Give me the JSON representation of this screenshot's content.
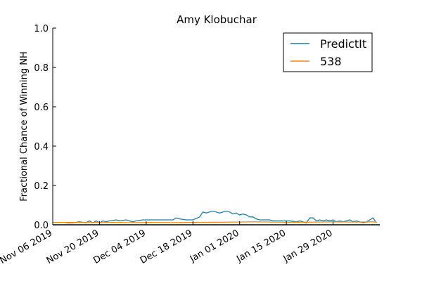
{
  "chart_data": {
    "type": "line",
    "title": "Amy Klobuchar",
    "xlabel": "",
    "ylabel": "Fractional Chance of Winning NH",
    "ylim": [
      0,
      1
    ],
    "yticks": [
      "0.0",
      "0.2",
      "0.4",
      "0.6",
      "0.8",
      "1.0"
    ],
    "xlim": [
      "2019-11-06",
      "2020-02-12"
    ],
    "xticks": [
      {
        "date": "2019-11-06",
        "label": "Nov 06 2019"
      },
      {
        "date": "2019-11-20",
        "label": "Nov 20 2019"
      },
      {
        "date": "2019-12-04",
        "label": "Dec 04 2019"
      },
      {
        "date": "2019-12-18",
        "label": "Dec 18 2019"
      },
      {
        "date": "2020-01-01",
        "label": "Jan 01 2020"
      },
      {
        "date": "2020-01-15",
        "label": "Jan 15 2020"
      },
      {
        "date": "2020-01-29",
        "label": "Jan 29 2020"
      }
    ],
    "grid": false,
    "legend_position": "top-right",
    "series": [
      {
        "name": "PredictIt",
        "color": "#1f7f9f",
        "points": [
          [
            "2019-11-10",
            0.01
          ],
          [
            "2019-11-12",
            0.01
          ],
          [
            "2019-11-14",
            0.015
          ],
          [
            "2019-11-16",
            0.01
          ],
          [
            "2019-11-17",
            0.02
          ],
          [
            "2019-11-18",
            0.01
          ],
          [
            "2019-11-19",
            0.02
          ],
          [
            "2019-11-20",
            0.01
          ],
          [
            "2019-11-21",
            0.02
          ],
          [
            "2019-11-22",
            0.015
          ],
          [
            "2019-11-23",
            0.02
          ],
          [
            "2019-11-25",
            0.025
          ],
          [
            "2019-11-26",
            0.02
          ],
          [
            "2019-11-28",
            0.025
          ],
          [
            "2019-11-30",
            0.015
          ],
          [
            "2019-12-01",
            0.02
          ],
          [
            "2019-12-03",
            0.025
          ],
          [
            "2019-12-05",
            0.025
          ],
          [
            "2019-12-08",
            0.025
          ],
          [
            "2019-12-10",
            0.025
          ],
          [
            "2019-12-12",
            0.025
          ],
          [
            "2019-12-13",
            0.035
          ],
          [
            "2019-12-14",
            0.03
          ],
          [
            "2019-12-16",
            0.025
          ],
          [
            "2019-12-18",
            0.025
          ],
          [
            "2019-12-20",
            0.04
          ],
          [
            "2019-12-21",
            0.065
          ],
          [
            "2019-12-22",
            0.06
          ],
          [
            "2019-12-23",
            0.065
          ],
          [
            "2019-12-24",
            0.07
          ],
          [
            "2019-12-26",
            0.06
          ],
          [
            "2019-12-27",
            0.065
          ],
          [
            "2019-12-28",
            0.07
          ],
          [
            "2019-12-29",
            0.065
          ],
          [
            "2019-12-30",
            0.055
          ],
          [
            "2019-12-31",
            0.06
          ],
          [
            "2020-01-01",
            0.05
          ],
          [
            "2020-01-02",
            0.055
          ],
          [
            "2020-01-03",
            0.05
          ],
          [
            "2020-01-04",
            0.04
          ],
          [
            "2020-01-05",
            0.04
          ],
          [
            "2020-01-06",
            0.03
          ],
          [
            "2020-01-07",
            0.025
          ],
          [
            "2020-01-08",
            0.025
          ],
          [
            "2020-01-10",
            0.025
          ],
          [
            "2020-01-11",
            0.02
          ],
          [
            "2020-01-13",
            0.02
          ],
          [
            "2020-01-15",
            0.02
          ],
          [
            "2020-01-16",
            0.02
          ],
          [
            "2020-01-18",
            0.015
          ],
          [
            "2020-01-19",
            0.02
          ],
          [
            "2020-01-20",
            0.015
          ],
          [
            "2020-01-21",
            0.01
          ],
          [
            "2020-01-22",
            0.035
          ],
          [
            "2020-01-23",
            0.035
          ],
          [
            "2020-01-24",
            0.02
          ],
          [
            "2020-01-25",
            0.025
          ],
          [
            "2020-01-26",
            0.02
          ],
          [
            "2020-01-27",
            0.025
          ],
          [
            "2020-01-28",
            0.02
          ],
          [
            "2020-01-29",
            0.025
          ],
          [
            "2020-01-30",
            0.015
          ],
          [
            "2020-01-31",
            0.02
          ],
          [
            "2020-02-01",
            0.015
          ],
          [
            "2020-02-02",
            0.02
          ],
          [
            "2020-02-03",
            0.025
          ],
          [
            "2020-02-04",
            0.015
          ],
          [
            "2020-02-05",
            0.02
          ],
          [
            "2020-02-06",
            0.015
          ],
          [
            "2020-02-07",
            0.01
          ],
          [
            "2020-02-08",
            0.015
          ],
          [
            "2020-02-09",
            0.025
          ],
          [
            "2020-02-10",
            0.035
          ],
          [
            "2020-02-11",
            0.01
          ]
        ]
      },
      {
        "name": "538",
        "color": "#f0880f",
        "points": [
          [
            "2019-11-06",
            0.012
          ],
          [
            "2019-11-12",
            0.012
          ],
          [
            "2019-11-18",
            0.011
          ],
          [
            "2019-11-24",
            0.012
          ],
          [
            "2019-11-30",
            0.011
          ],
          [
            "2019-12-06",
            0.012
          ],
          [
            "2019-12-12",
            0.011
          ],
          [
            "2019-12-18",
            0.012
          ],
          [
            "2019-12-24",
            0.013
          ],
          [
            "2019-12-30",
            0.014
          ],
          [
            "2020-01-05",
            0.015
          ],
          [
            "2020-01-11",
            0.014
          ],
          [
            "2020-01-17",
            0.013
          ],
          [
            "2020-01-23",
            0.014
          ],
          [
            "2020-01-29",
            0.015
          ],
          [
            "2020-02-04",
            0.014
          ],
          [
            "2020-02-11",
            0.015
          ]
        ]
      }
    ]
  }
}
